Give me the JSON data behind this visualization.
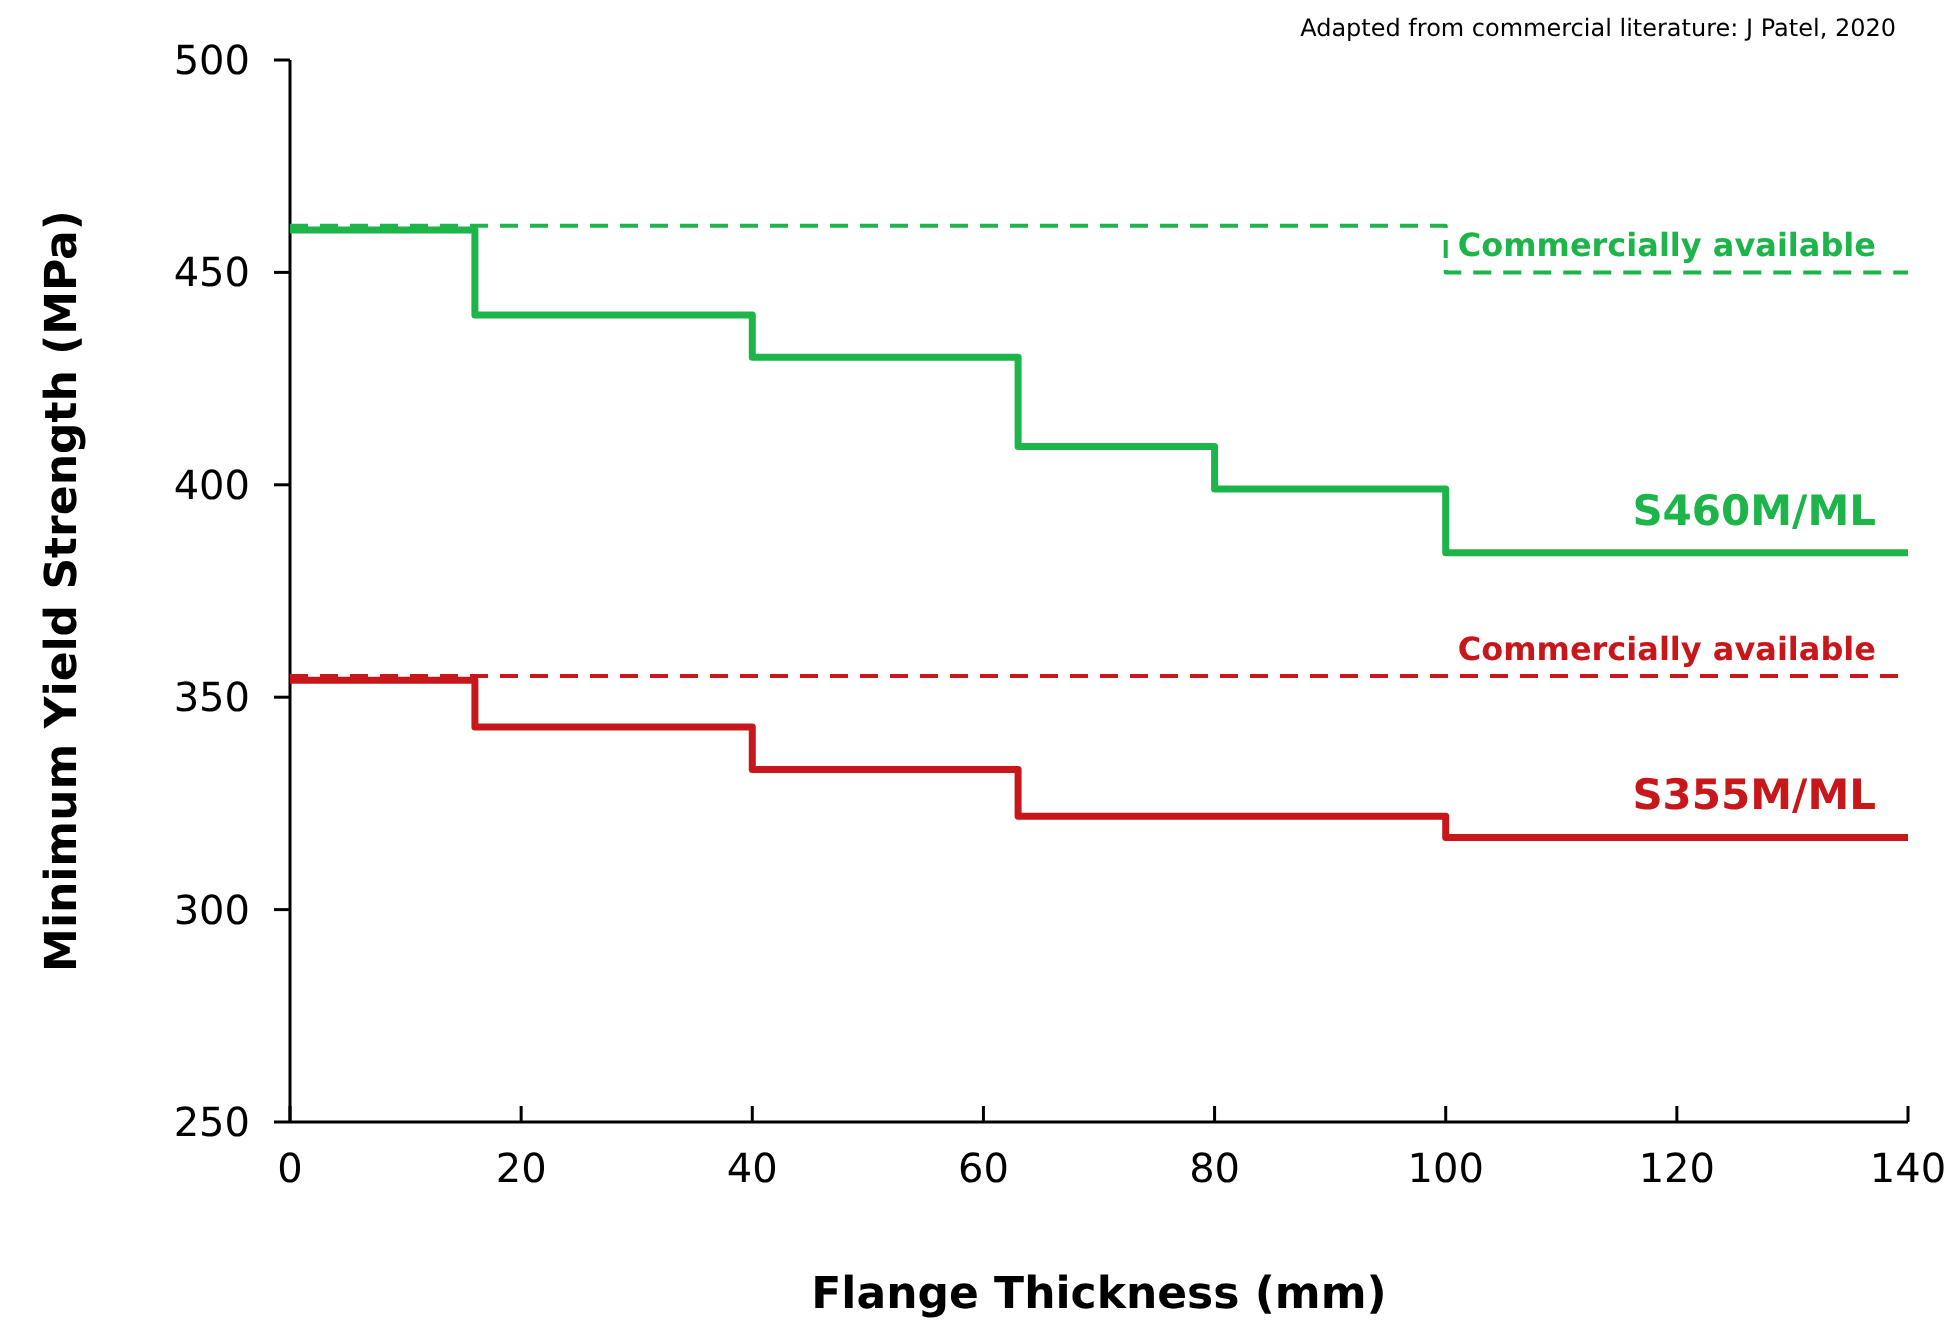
{
  "chart_data": {
    "type": "step",
    "xlabel": "Flange Thickness (mm)",
    "ylabel": "Minimum Yield Strength  (MPa)",
    "annotations": [
      "Adapted from commercial literature: J Patel, 2020"
    ],
    "xlim": [
      0,
      140
    ],
    "xticks": [
      0,
      20,
      40,
      60,
      80,
      100,
      120,
      140
    ],
    "ylim": [
      250,
      500
    ],
    "yticks": [
      250,
      300,
      350,
      400,
      450,
      500
    ],
    "grid": false,
    "marker": "none",
    "series": [
      {
        "name": "Commercially available",
        "color": "#1db44a",
        "line_style": "dashed",
        "x": [
          0,
          100,
          140
        ],
        "values": [
          461,
          450,
          450
        ]
      },
      {
        "name": "S460M/ML",
        "color": "#1db44a",
        "line_style": "solid",
        "x": [
          0,
          16,
          40,
          63,
          80,
          100,
          140
        ],
        "values": [
          460,
          440,
          430,
          409,
          399,
          384,
          384
        ]
      },
      {
        "name": "Commercially available",
        "color": "#c8171b",
        "line_style": "dashed",
        "x": [
          0,
          140
        ],
        "values": [
          355,
          355
        ]
      },
      {
        "name": "S355M/ML",
        "color": "#c8171b",
        "line_style": "solid",
        "x": [
          0,
          16,
          40,
          63,
          100,
          140
        ],
        "values": [
          354,
          343,
          333,
          322,
          317,
          317
        ]
      }
    ]
  }
}
